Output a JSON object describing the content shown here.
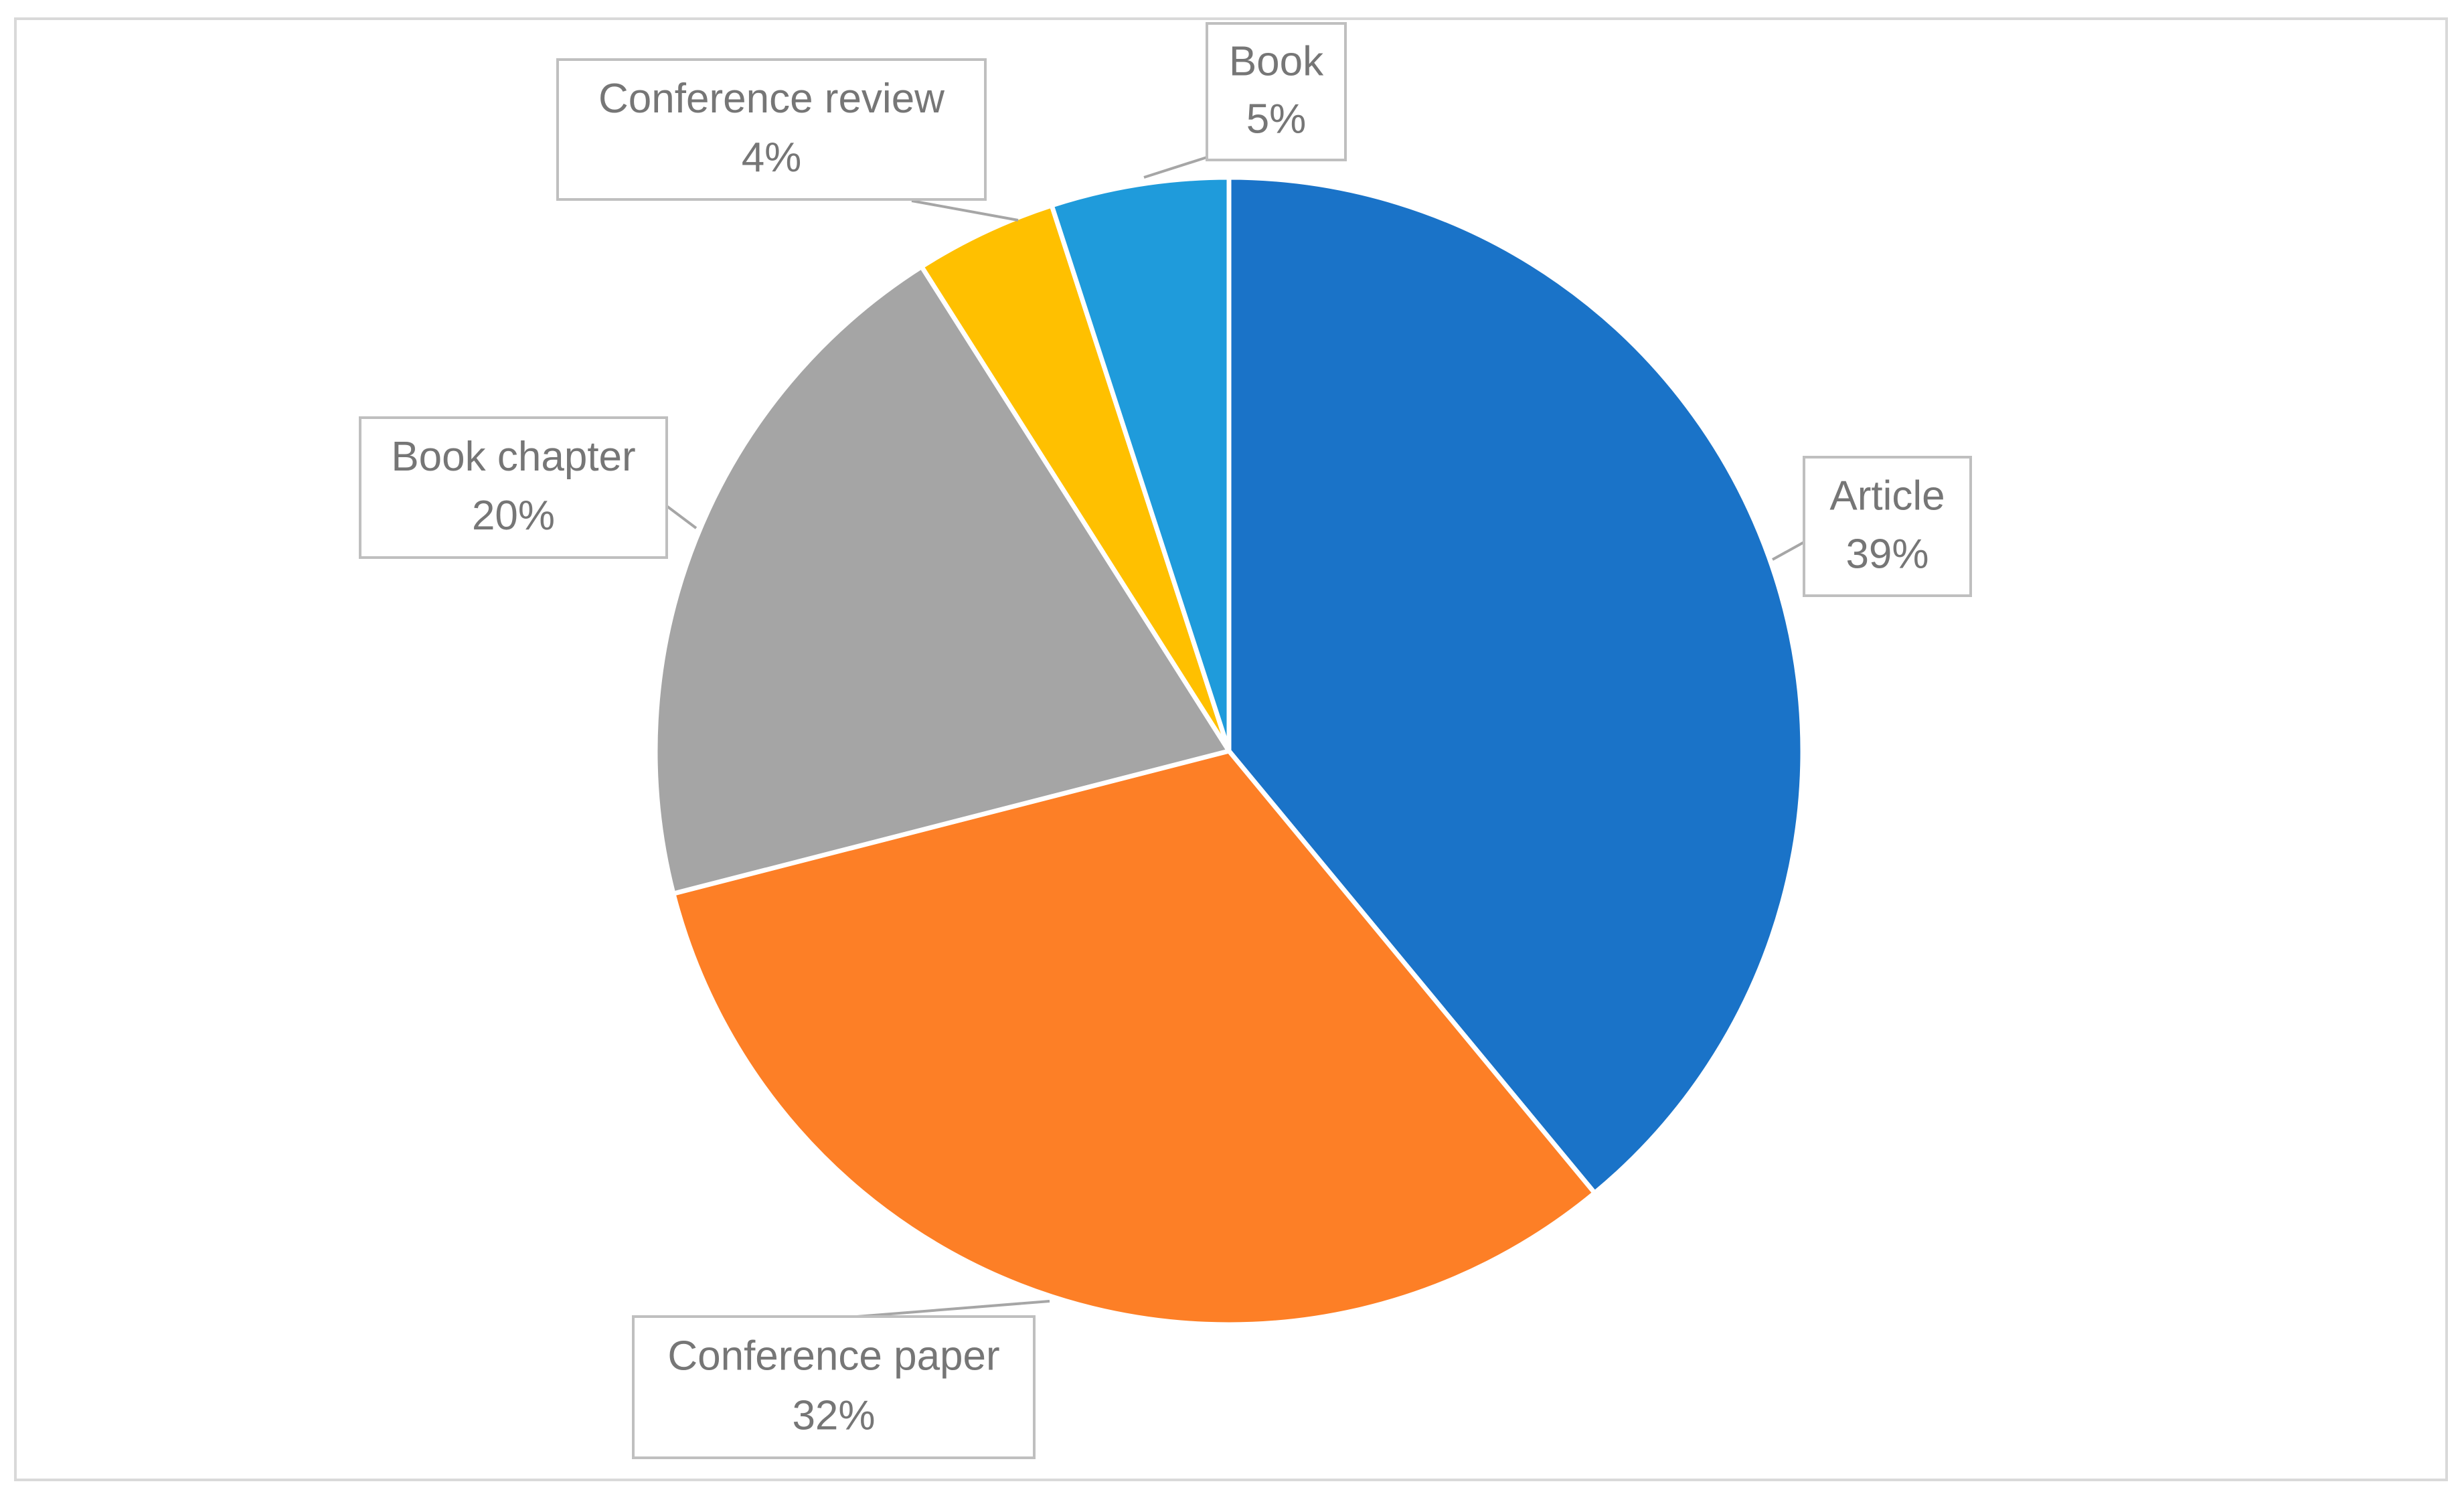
{
  "chart_data": {
    "type": "pie",
    "categories": [
      "Article",
      "Conference paper",
      "Book chapter",
      "Conference review",
      "Book"
    ],
    "values": [
      39,
      32,
      20,
      4,
      5
    ],
    "value_labels": [
      "39%",
      "32%",
      "20%",
      "4%",
      "5%"
    ],
    "colors": [
      "#1a73c8",
      "#fd7f26",
      "#a5a5a5",
      "#ffc000",
      "#1f9bdb"
    ]
  }
}
